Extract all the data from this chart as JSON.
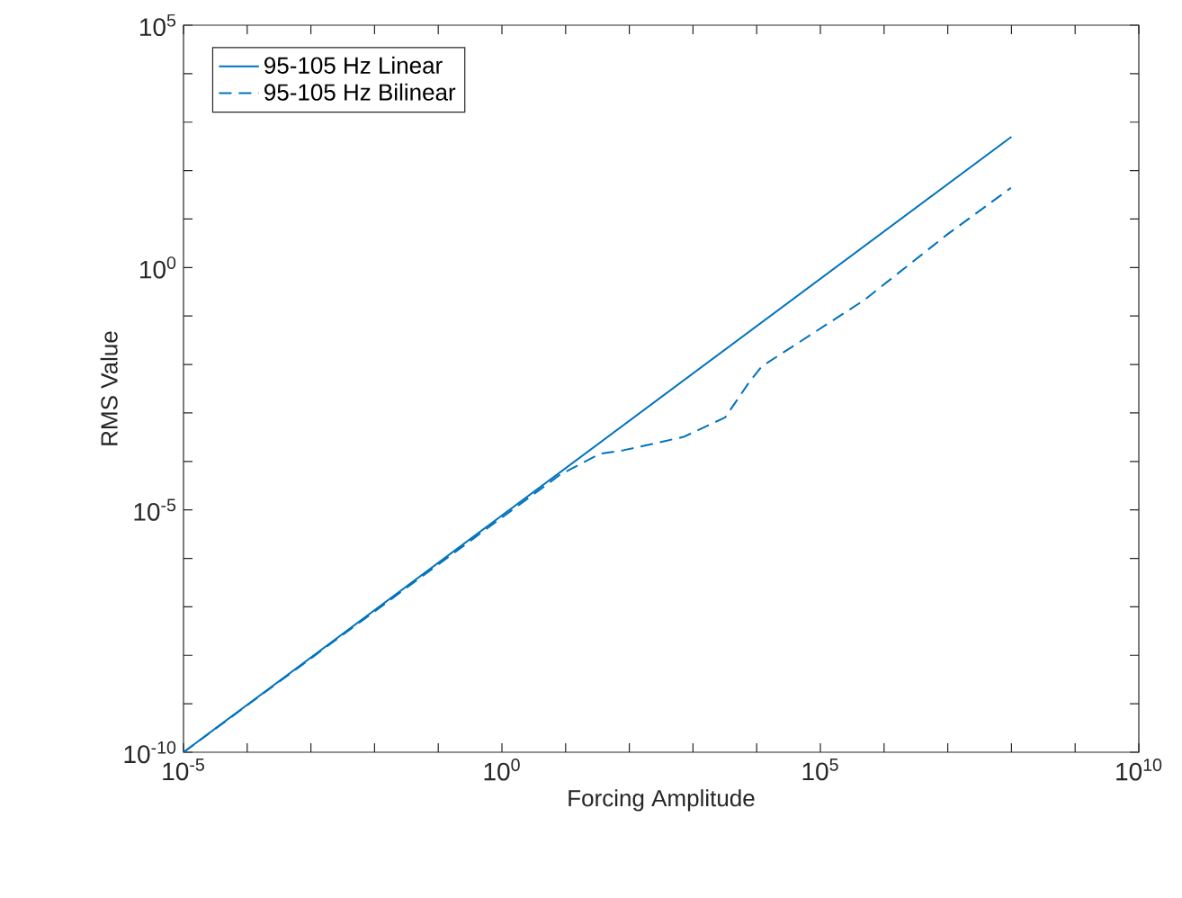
{
  "chart_data": {
    "type": "line",
    "xlabel": "Forcing Amplitude",
    "ylabel": "RMS Value",
    "log": "xy",
    "grid": false,
    "legend": "top left",
    "marker": "none",
    "xlim": [
      1e-05,
      10000000000.0
    ],
    "ylim": [
      1e-10,
      100000.0
    ],
    "xticks": [
      {
        "value": 1e-05,
        "label": "10$^{-5}$"
      },
      {
        "value": 0.0001,
        "label": null
      },
      {
        "value": 0.001,
        "label": null
      },
      {
        "value": 0.01,
        "label": null
      },
      {
        "value": 0.1,
        "label": null
      },
      {
        "value": 1,
        "label": "10$^{0}$"
      },
      {
        "value": 10,
        "label": null
      },
      {
        "value": 100,
        "label": null
      },
      {
        "value": 1000,
        "label": null
      },
      {
        "value": 10000,
        "label": null
      },
      {
        "value": 100000.0,
        "label": "10$^{5}$"
      },
      {
        "value": 1000000.0,
        "label": null
      },
      {
        "value": 10000000.0,
        "label": null
      },
      {
        "value": 100000000.0,
        "label": null
      },
      {
        "value": 1000000000.0,
        "label": null
      },
      {
        "value": 10000000000.0,
        "label": "10$^{10}$"
      }
    ],
    "yticks": [
      {
        "value": 1e-10,
        "label": "10$^{-10}$"
      },
      {
        "value": 1e-09,
        "label": null
      },
      {
        "value": 1e-08,
        "label": null
      },
      {
        "value": 1e-07,
        "label": null
      },
      {
        "value": 1e-06,
        "label": null
      },
      {
        "value": 1e-05,
        "label": "10$^{-5}$"
      },
      {
        "value": 0.0001,
        "label": null
      },
      {
        "value": 0.001,
        "label": null
      },
      {
        "value": 0.01,
        "label": null
      },
      {
        "value": 0.1,
        "label": null
      },
      {
        "value": 1,
        "label": "10$^{0}$"
      },
      {
        "value": 10,
        "label": null
      },
      {
        "value": 100,
        "label": null
      },
      {
        "value": 1000,
        "label": null
      },
      {
        "value": 10000,
        "label": null
      },
      {
        "value": 100000.0,
        "label": "10$^{5}$"
      }
    ],
    "series": [
      {
        "name": "95-105 Hz Linear",
        "color": "#0072bd",
        "line_style": "solid",
        "x": [
          1e-05,
          100000000.0
        ],
        "values": [
          1e-10,
          500
        ]
      },
      {
        "name": "95-105 Hz Bilinear",
        "color": "#0072bd",
        "line_style": "dashed",
        "x": [
          1e-05,
          8.3,
          35,
          81,
          710,
          3200,
          7800,
          12000,
          480000,
          10000000.0,
          98000000.0
        ],
        "values": [
          1e-10,
          5.4e-05,
          0.000145,
          0.00017,
          0.00032,
          0.00081,
          0.0045,
          0.0091,
          0.21,
          4.9,
          44
        ]
      }
    ]
  }
}
